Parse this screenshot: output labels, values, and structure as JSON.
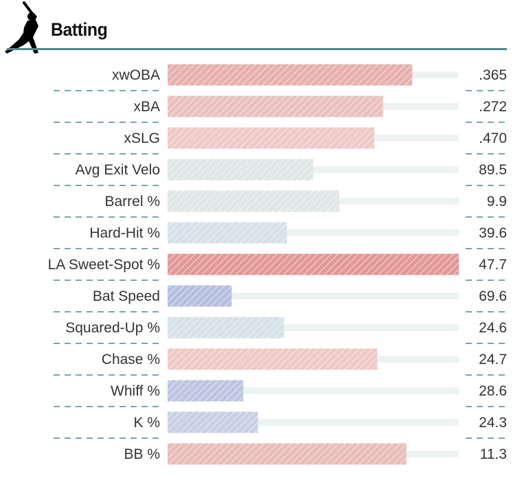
{
  "section": {
    "title": "Batting",
    "icon": "batter-silhouette-icon"
  },
  "colors": {
    "rule": "#4a8a8e",
    "track": "#edf3f3",
    "dash": "#4a8a8e",
    "text": "#333333"
  },
  "chart_data": {
    "type": "bar",
    "orientation": "horizontal",
    "value_scale": "percentile",
    "xlim": [
      0,
      100
    ],
    "grid": false,
    "rows": [
      {
        "label": "xwOBA",
        "display": ".365",
        "percentile": 84,
        "color": "#e6b0ae"
      },
      {
        "label": "xBA",
        "display": ".272",
        "percentile": 74,
        "color": "#eac0be"
      },
      {
        "label": "xSLG",
        "display": ".470",
        "percentile": 71,
        "color": "#eec8c6"
      },
      {
        "label": "Avg Exit Velo",
        "display": "89.5",
        "percentile": 50,
        "color": "#dfe6e6"
      },
      {
        "label": "Barrel %",
        "display": "9.9",
        "percentile": 59,
        "color": "#e0e6e6"
      },
      {
        "label": "Hard-Hit %",
        "display": "39.6",
        "percentile": 41,
        "color": "#d6e0e8"
      },
      {
        "label": "LA Sweet-Spot %",
        "display": "47.7",
        "percentile": 100,
        "color": "#e29796"
      },
      {
        "label": "Bat Speed",
        "display": "69.6",
        "percentile": 22,
        "color": "#b6bedf"
      },
      {
        "label": "Squared-Up %",
        "display": "24.6",
        "percentile": 40,
        "color": "#d6e0e8"
      },
      {
        "label": "Chase %",
        "display": "24.7",
        "percentile": 72,
        "color": "#eec8c6"
      },
      {
        "label": "Whiff %",
        "display": "28.6",
        "percentile": 26,
        "color": "#bcc4e2"
      },
      {
        "label": "K %",
        "display": "24.3",
        "percentile": 31,
        "color": "#c7cfe5"
      },
      {
        "label": "BB %",
        "display": "11.3",
        "percentile": 82,
        "color": "#e8bcb9"
      }
    ]
  }
}
